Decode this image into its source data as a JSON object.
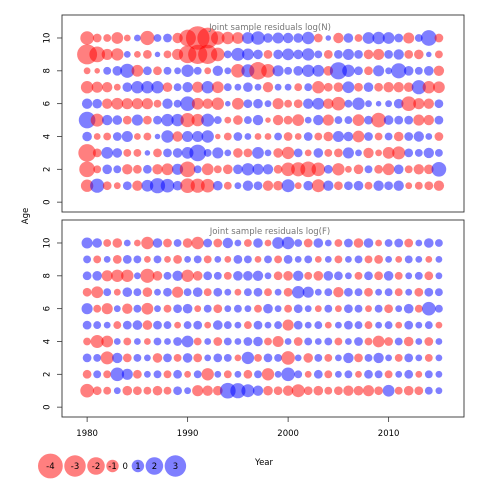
{
  "chart_data": [
    {
      "type": "scatter",
      "title": "Joint sample residuals log(N)",
      "xlim": [
        1977.5,
        2017.5
      ],
      "ylim": [
        -0.6,
        11.4
      ],
      "y_ticks": [
        "0",
        "2",
        "4",
        "6",
        "8",
        "10"
      ],
      "grid": false,
      "encoding": "bubble area ~ |residual|; red = negative, blue = positive",
      "colors": {
        "negative": "#ff0000",
        "positive": "#0000ff"
      },
      "years": [
        1980,
        1981,
        1982,
        1983,
        1984,
        1985,
        1986,
        1987,
        1988,
        1989,
        1990,
        1991,
        1992,
        1993,
        1994,
        1995,
        1996,
        1997,
        1998,
        1999,
        2000,
        2001,
        2002,
        2003,
        2004,
        2005,
        2006,
        2007,
        2008,
        2009,
        2010,
        2011,
        2012,
        2013,
        2014,
        2015
      ],
      "ages": [
        1,
        2,
        3,
        4,
        5,
        6,
        7,
        8,
        9,
        10
      ],
      "residuals_by_age": {
        "10": [
          -1.2,
          -0.5,
          -0.4,
          -0.9,
          -0.3,
          0.3,
          -1.3,
          0.4,
          0.5,
          -0.7,
          -1.8,
          -3.6,
          -2.8,
          -1.2,
          -1.0,
          -0.9,
          0.9,
          1.2,
          0.6,
          0.8,
          0.7,
          0.6,
          1.0,
          -0.5,
          0.2,
          -0.7,
          0.6,
          -0.4,
          0.9,
          1.0,
          0.9,
          0.5,
          -0.8,
          0.4,
          1.6,
          -0.5
        ],
        "9": [
          -2.6,
          -1.6,
          -0.8,
          -1.0,
          0.3,
          -0.3,
          -0.5,
          0.2,
          -0.4,
          -0.8,
          -2.0,
          -2.4,
          -2.4,
          -1.2,
          0.4,
          1.1,
          0.9,
          0.6,
          -0.5,
          0.6,
          0.9,
          0.6,
          1.0,
          0.4,
          -0.5,
          0.5,
          0.8,
          0.5,
          -0.6,
          -0.8,
          0.5,
          0.7,
          -0.5,
          -0.6,
          0.2,
          -0.4
        ],
        "8": [
          -0.3,
          -0.2,
          0.4,
          0.6,
          1.3,
          -0.9,
          0.5,
          -0.5,
          0.4,
          0.3,
          1.0,
          0.4,
          -0.3,
          0.7,
          0.3,
          -1.2,
          1.1,
          -2.0,
          -1.2,
          0.8,
          0.4,
          0.6,
          1.0,
          0.9,
          -0.6,
          1.9,
          1.0,
          0.5,
          -0.5,
          0.8,
          0.3,
          1.5,
          0.6,
          0.4,
          0.6,
          -0.7
        ],
        "7": [
          -1.0,
          -0.8,
          -0.7,
          -0.3,
          0.6,
          1.0,
          1.0,
          1.0,
          -0.6,
          0.4,
          0.7,
          -0.8,
          1.0,
          -0.9,
          0.4,
          0.3,
          0.6,
          0.3,
          -0.7,
          0.3,
          0.3,
          -0.4,
          0.4,
          -1.0,
          -0.5,
          -0.6,
          0.9,
          -0.5,
          0.6,
          -0.5,
          -0.7,
          -0.7,
          -0.6,
          1.3,
          -1.0,
          -0.9
        ],
        "6": [
          0.7,
          0.6,
          -0.7,
          -0.9,
          -0.8,
          -0.8,
          -0.8,
          -0.4,
          0.7,
          0.4,
          1.4,
          -0.9,
          -0.7,
          -1.0,
          0.2,
          -0.9,
          0.5,
          0.6,
          0.3,
          -0.8,
          -0.4,
          -0.5,
          0.7,
          0.9,
          -0.7,
          -1.2,
          0.4,
          1.0,
          0.3,
          0.2,
          0.3,
          0.6,
          -1.4,
          -0.8,
          -0.7,
          0.5
        ],
        "5": [
          1.8,
          -1.1,
          0.7,
          0.6,
          -0.5,
          0.8,
          -0.5,
          0.5,
          1.0,
          1.0,
          -1.3,
          -1.0,
          1.1,
          0.4,
          -0.3,
          -0.6,
          0.4,
          0.7,
          -0.2,
          -0.7,
          -0.5,
          -0.9,
          0.3,
          0.7,
          -0.8,
          0.4,
          0.4,
          -0.9,
          0.5,
          -1.4,
          0.6,
          0.5,
          0.5,
          -0.8,
          -0.7,
          0.5
        ],
        "4": [
          0.6,
          -0.3,
          -0.4,
          0.5,
          0.8,
          -0.3,
          -0.4,
          0.2,
          1.0,
          -0.7,
          0.8,
          0.8,
          1.0,
          -0.2,
          -0.4,
          0.5,
          0.3,
          -0.3,
          -0.3,
          0.4,
          -0.5,
          -0.3,
          0.5,
          -0.4,
          -0.6,
          0.8,
          0.6,
          -0.9,
          0.5,
          -0.4,
          0.4,
          -0.6,
          0.5,
          0.7,
          0.3,
          -0.5
        ],
        "3": [
          -2.0,
          -0.5,
          0.9,
          0.6,
          -0.4,
          -0.4,
          0.2,
          -0.5,
          0.5,
          0.6,
          0.9,
          1.8,
          0.4,
          0.8,
          0.3,
          -0.6,
          -0.5,
          0.9,
          0.3,
          -0.6,
          -1.0,
          0.5,
          -0.3,
          0.6,
          -0.4,
          -0.5,
          0.8,
          0.3,
          -0.7,
          -0.3,
          -0.9,
          -1.1,
          0.5,
          0.4,
          0.7,
          0.4
        ],
        "2": [
          -1.6,
          -0.4,
          0.6,
          0.4,
          -0.7,
          -0.5,
          0.5,
          -0.7,
          -0.9,
          0.8,
          -1.6,
          0.4,
          -0.9,
          -0.4,
          -0.6,
          0.6,
          1.0,
          0.8,
          0.7,
          -0.5,
          -1.2,
          -1.3,
          -1.6,
          -1.2,
          0.5,
          -1.0,
          -0.3,
          -0.6,
          0.4,
          -0.5,
          -0.9,
          0.6,
          -0.4,
          -0.7,
          -0.6,
          1.4
        ],
        "1": [
          -1.0,
          1.3,
          -0.5,
          -0.3,
          0.5,
          -0.7,
          0.9,
          1.5,
          1.2,
          0.6,
          -1.4,
          -1.3,
          -1.2,
          0.6,
          -0.4,
          0.3,
          0.7,
          0.5,
          -0.7,
          -0.6,
          1.1,
          -0.3,
          0.6,
          -1.1,
          0.7,
          -0.5,
          0.5,
          0.6,
          -0.4,
          0.7,
          0.5,
          0.7,
          -0.3,
          -0.4,
          -0.5,
          -0.7
        ]
      }
    },
    {
      "type": "scatter",
      "title": "Joint sample residuals log(F)",
      "xlim": [
        1977.5,
        2017.5
      ],
      "ylim": [
        -0.6,
        11.4
      ],
      "x_ticks": [
        "1980",
        "1990",
        "2000",
        "2010"
      ],
      "y_ticks": [
        "0",
        "2",
        "4",
        "6",
        "8",
        "10"
      ],
      "xlabel": "Year",
      "grid": false,
      "encoding": "bubble area ~ |residual|; red = negative, blue = positive",
      "colors": {
        "negative": "#ff0000",
        "positive": "#0000ff"
      },
      "years": [
        1980,
        1981,
        1982,
        1983,
        1984,
        1985,
        1986,
        1987,
        1988,
        1989,
        1990,
        1991,
        1992,
        1993,
        1994,
        1995,
        1996,
        1997,
        1998,
        1999,
        2000,
        2001,
        2002,
        2003,
        2004,
        2005,
        2006,
        2007,
        2008,
        2009,
        2010,
        2011,
        2012,
        2013,
        2014,
        2015
      ],
      "ages": [
        1,
        2,
        3,
        4,
        5,
        6,
        7,
        8,
        9,
        10
      ],
      "residuals_by_age": {
        "10": [
          0.8,
          0.6,
          -0.4,
          -0.6,
          0.3,
          -0.3,
          -1.0,
          0.6,
          -0.5,
          0.4,
          -0.6,
          -1.0,
          0.5,
          -0.5,
          0.7,
          0.3,
          -0.4,
          0.6,
          -0.3,
          0.9,
          1.0,
          0.4,
          -0.5,
          0.6,
          0.3,
          -0.4,
          0.5,
          -0.6,
          0.6,
          -0.3,
          0.4,
          0.5,
          -0.5,
          0.3,
          0.6,
          0.4
        ],
        "9": [
          0.4,
          -0.4,
          0.3,
          -0.5,
          0.5,
          0.4,
          -0.3,
          0.4,
          -0.3,
          -0.5,
          0.3,
          0.4,
          -0.4,
          0.3,
          -0.3,
          0.5,
          0.4,
          -0.3,
          0.4,
          -0.4,
          0.5,
          0.3,
          0.4,
          -0.3,
          0.3,
          -0.4,
          0.3,
          0.4,
          -0.4,
          -0.5,
          0.3,
          -0.3,
          0.4,
          0.3,
          -0.3,
          0.3
        ],
        "8": [
          0.5,
          0.6,
          -0.8,
          -1.0,
          -1.0,
          0.3,
          -1.3,
          -0.6,
          0.4,
          0.7,
          -1.0,
          -0.6,
          0.5,
          0.4,
          -0.4,
          0.6,
          0.6,
          0.7,
          0.3,
          -0.5,
          -0.6,
          0.7,
          -0.4,
          -0.6,
          0.6,
          0.5,
          0.3,
          -0.4,
          0.5,
          -0.5,
          0.6,
          -0.4,
          0.3,
          0.4,
          -0.5,
          0.3
        ],
        "7": [
          -0.5,
          -0.9,
          0.4,
          -0.3,
          0.6,
          0.4,
          -0.6,
          0.3,
          0.5,
          -0.8,
          0.4,
          0.6,
          -0.4,
          0.5,
          0.3,
          -0.3,
          0.4,
          0.5,
          -0.4,
          0.3,
          -0.5,
          1.0,
          0.8,
          0.3,
          0.4,
          -0.7,
          0.5,
          0.4,
          -0.5,
          0.3,
          0.4,
          -0.4,
          0.3,
          -0.5,
          0.5,
          0.4
        ],
        "6": [
          0.8,
          -0.4,
          -0.8,
          0.3,
          -0.7,
          0.4,
          -0.9,
          0.3,
          -0.4,
          0.5,
          0.6,
          -0.3,
          0.4,
          -0.5,
          0.3,
          0.4,
          0.3,
          -0.4,
          0.6,
          0.3,
          -0.4,
          0.5,
          0.3,
          -0.3,
          0.4,
          -0.3,
          0.5,
          0.4,
          -0.3,
          0.4,
          -0.5,
          0.3,
          0.6,
          -0.4,
          1.2,
          0.4
        ],
        "5": [
          0.5,
          0.4,
          0.3,
          -0.4,
          0.5,
          0.6,
          -0.6,
          0.5,
          0.4,
          -0.3,
          0.4,
          0.5,
          -0.3,
          0.6,
          0.4,
          0.3,
          -0.4,
          0.5,
          0.3,
          0.4,
          -0.8,
          0.5,
          0.3,
          0.4,
          -0.3,
          0.3,
          0.5,
          0.4,
          -0.4,
          0.3,
          0.4,
          -0.3,
          0.5,
          0.3,
          0.4,
          -0.3
        ],
        "4": [
          -0.4,
          -1.1,
          -0.9,
          0.3,
          -0.4,
          0.3,
          -0.3,
          0.4,
          0.3,
          0.5,
          0.9,
          -0.4,
          0.3,
          -0.5,
          0.4,
          0.3,
          0.5,
          0.6,
          -0.4,
          -0.8,
          0.3,
          -0.5,
          0.4,
          0.3,
          0.4,
          -0.4,
          0.3,
          0.5,
          -0.4,
          -0.9,
          -0.5,
          0.4,
          -0.6,
          0.3,
          -0.5,
          0.3
        ],
        "3": [
          0.5,
          0.4,
          -1.1,
          0.7,
          -0.5,
          0.4,
          0.3,
          -0.6,
          0.5,
          -0.4,
          0.6,
          -0.5,
          0.3,
          0.5,
          0.4,
          -0.3,
          1.0,
          -0.4,
          0.5,
          0.4,
          -1.2,
          0.3,
          -0.6,
          0.4,
          -0.4,
          0.3,
          0.7,
          -0.5,
          0.4,
          0.7,
          0.3,
          -0.4,
          0.5,
          0.3,
          -0.4,
          0.3
        ],
        "2": [
          -0.5,
          0.4,
          -0.4,
          1.2,
          0.8,
          -0.5,
          0.3,
          0.4,
          -0.4,
          0.5,
          -0.3,
          0.4,
          -1.0,
          0.3,
          -0.4,
          0.3,
          -0.5,
          0.4,
          -1.0,
          0.3,
          1.2,
          0.4,
          -0.3,
          0.5,
          -0.4,
          0.3,
          0.4,
          -0.3,
          0.5,
          0.4,
          -0.4,
          0.3,
          0.5,
          -0.3,
          0.4,
          0.3
        ],
        "1": [
          -1.2,
          -0.5,
          -0.4,
          0.3,
          -0.6,
          -0.5,
          -0.4,
          -0.6,
          -0.4,
          0.5,
          0.3,
          -0.8,
          -0.7,
          -0.6,
          1.6,
          1.5,
          1.1,
          0.7,
          -0.6,
          -0.5,
          -0.7,
          -1.1,
          -0.5,
          -0.6,
          -0.4,
          -0.5,
          -0.7,
          -0.6,
          -0.8,
          -0.5,
          0.9,
          -0.4,
          -0.6,
          -0.5,
          0.4,
          0.3
        ]
      }
    }
  ],
  "figure": {
    "shared_ylabel": "Age"
  },
  "legend": {
    "items": [
      {
        "label": "-4",
        "value": -4
      },
      {
        "label": "-3",
        "value": -3
      },
      {
        "label": "-2",
        "value": -2
      },
      {
        "label": "-1",
        "value": -1
      },
      {
        "label": "0",
        "value": 0
      },
      {
        "label": "1",
        "value": 1
      },
      {
        "label": "2",
        "value": 2
      },
      {
        "label": "3",
        "value": 3
      }
    ]
  }
}
